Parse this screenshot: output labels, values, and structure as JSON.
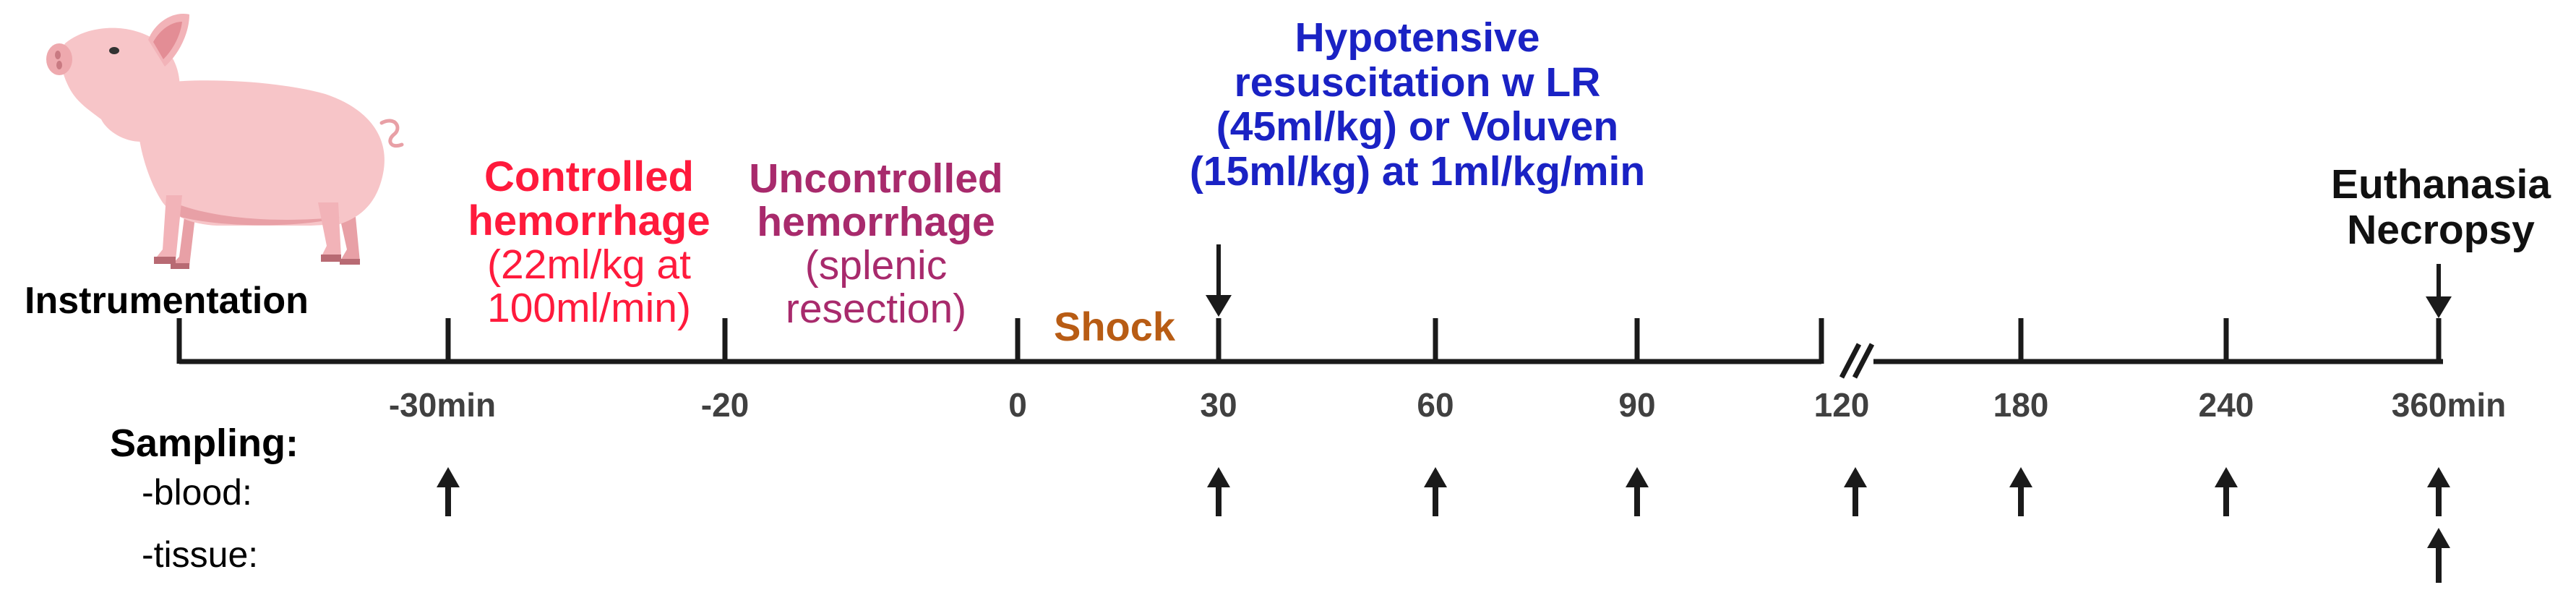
{
  "colors": {
    "axis": "#1a1a1a",
    "tick_label": "#404040",
    "controlled": "#ff1a3c",
    "uncontrolled": "#a82a6c",
    "shock": "#b85c14",
    "resuscitation": "#1a22c4",
    "euthanasia": "#111111",
    "pig_body": "#f7c5c8",
    "pig_shade": "#e8a0a6"
  },
  "icons": [
    "pig-illustration",
    "down-arrow-icon",
    "up-arrow-icon",
    "axis-break-icon"
  ],
  "instrumentation": "Instrumentation",
  "controlled": {
    "title_lines": [
      "Controlled",
      "hemorrhage"
    ],
    "detail_lines": [
      "(22ml/kg at",
      "100ml/min)"
    ]
  },
  "uncontrolled": {
    "title_lines": [
      "Uncontrolled",
      "hemorrhage"
    ],
    "detail_lines": [
      "(splenic",
      "resection)"
    ]
  },
  "shock": "Shock",
  "resuscitation": {
    "lines": [
      "Hypotensive",
      "resuscitation w LR",
      "(45ml/kg) or Voluven",
      "(15ml/kg) at 1ml/kg/min"
    ]
  },
  "euthanasia": {
    "lines": [
      "Euthanasia",
      "Necropsy"
    ]
  },
  "ticks": [
    "-30min",
    "-20",
    "0",
    "30",
    "60",
    "90",
    "120",
    "180",
    "240",
    "360min"
  ],
  "sampling": {
    "title": "Sampling:",
    "blood_label": "-blood:",
    "tissue_label": "-tissue:",
    "blood_times": [
      "-30min",
      "30",
      "60",
      "90",
      "120",
      "180",
      "240",
      "360min"
    ],
    "tissue_times": [
      "360min"
    ]
  }
}
